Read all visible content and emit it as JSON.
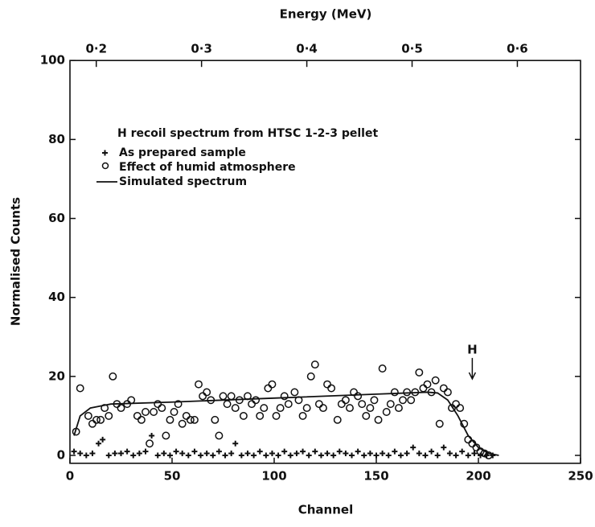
{
  "chart_data": {
    "type": "scatter",
    "title": "H recoil spectrum from HTSC 1-2-3 pellet",
    "x_label": "Channel",
    "y_label": "Normalised Counts",
    "x2_label": "Energy (MeV)",
    "xlim": [
      0,
      250
    ],
    "xticks": [
      0,
      50,
      100,
      150,
      200,
      250
    ],
    "ylim": [
      -2,
      100
    ],
    "yticks": [
      0,
      20,
      40,
      60,
      80,
      100
    ],
    "x2lim": [
      0.175,
      0.66
    ],
    "x2ticks": [
      {
        "value": 0.2,
        "label": "0·2"
      },
      {
        "value": 0.3,
        "label": "0·3"
      },
      {
        "value": 0.4,
        "label": "0·4"
      },
      {
        "value": 0.5,
        "label": "0·5"
      },
      {
        "value": 0.6,
        "label": "0·6"
      }
    ],
    "legend": "upper left",
    "series": [
      {
        "name": "As prepared sample",
        "marker": "plus",
        "color": "#111111",
        "x": [
          2,
          5,
          8,
          11,
          14,
          16,
          19,
          22,
          25,
          28,
          31,
          34,
          37,
          40,
          43,
          46,
          49,
          52,
          55,
          58,
          61,
          64,
          67,
          70,
          73,
          76,
          79,
          81,
          84,
          87,
          90,
          93,
          96,
          99,
          102,
          105,
          108,
          111,
          114,
          117,
          120,
          123,
          126,
          129,
          132,
          135,
          138,
          141,
          144,
          147,
          150,
          153,
          156,
          159,
          162,
          165,
          168,
          171,
          174,
          177,
          180,
          183,
          186,
          189,
          192,
          195,
          198,
          201,
          204,
          207
        ],
        "values": [
          1,
          0.5,
          0,
          0.5,
          3,
          4,
          0,
          0.5,
          0.5,
          1,
          0,
          0.5,
          1,
          5,
          0,
          0.5,
          0,
          1,
          0.5,
          0,
          1,
          0,
          0.5,
          0,
          1,
          0,
          0.5,
          3,
          0,
          0.5,
          0,
          1,
          0,
          0.5,
          0,
          1,
          0,
          0.5,
          1,
          0,
          1,
          0,
          0.5,
          0,
          1,
          0.5,
          0,
          1,
          0,
          0.5,
          0,
          0.5,
          0,
          1,
          0,
          0.5,
          2,
          0.5,
          0,
          1,
          0,
          2,
          0.5,
          0,
          1,
          0,
          0.5,
          0,
          0,
          0
        ]
      },
      {
        "name": "Effect of humid atmosphere",
        "marker": "circle",
        "color": "#111111",
        "x": [
          3,
          5,
          9,
          11,
          13,
          15,
          17,
          19,
          21,
          23,
          25,
          28,
          30,
          33,
          35,
          37,
          39,
          41,
          43,
          45,
          47,
          49,
          51,
          53,
          55,
          57,
          59,
          61,
          63,
          65,
          67,
          69,
          71,
          73,
          75,
          77,
          79,
          81,
          83,
          85,
          87,
          89,
          91,
          93,
          95,
          97,
          99,
          101,
          103,
          105,
          107,
          110,
          112,
          114,
          116,
          118,
          120,
          122,
          124,
          126,
          128,
          131,
          133,
          135,
          137,
          139,
          141,
          143,
          145,
          147,
          149,
          151,
          153,
          155,
          157,
          159,
          161,
          163,
          165,
          167,
          169,
          171,
          173,
          175,
          177,
          179,
          181,
          183,
          185,
          187,
          189,
          191,
          193,
          195,
          197,
          199,
          201,
          203,
          205
        ],
        "values": [
          6,
          17,
          10,
          8,
          9,
          9,
          12,
          10,
          20,
          13,
          12,
          13,
          14,
          10,
          9,
          11,
          3,
          11,
          13,
          12,
          5,
          9,
          11,
          13,
          8,
          10,
          9,
          9,
          18,
          15,
          16,
          14,
          9,
          5,
          15,
          13,
          15,
          12,
          14,
          10,
          15,
          13,
          14,
          10,
          12,
          17,
          18,
          10,
          12,
          15,
          13,
          16,
          14,
          10,
          12,
          20,
          23,
          13,
          12,
          18,
          17,
          9,
          13,
          14,
          12,
          16,
          15,
          13,
          10,
          12,
          14,
          9,
          22,
          11,
          13,
          16,
          12,
          14,
          16,
          14,
          16,
          21,
          17,
          18,
          16,
          19,
          8,
          17,
          16,
          12,
          13,
          12,
          8,
          4,
          3,
          2,
          1,
          0.5,
          0
        ]
      },
      {
        "name": "Simulated spectrum",
        "marker": "line",
        "color": "#111111",
        "x": [
          2,
          5,
          10,
          15,
          20,
          50,
          100,
          150,
          175,
          180,
          185,
          190,
          195,
          200,
          205,
          210
        ],
        "values": [
          5,
          10,
          12,
          12.5,
          13,
          13.5,
          14.5,
          15.5,
          16,
          15.8,
          14,
          10,
          5,
          2,
          0.5,
          0
        ]
      }
    ],
    "annotations": [
      {
        "text": "H",
        "x": 197,
        "y": 21
      }
    ]
  }
}
